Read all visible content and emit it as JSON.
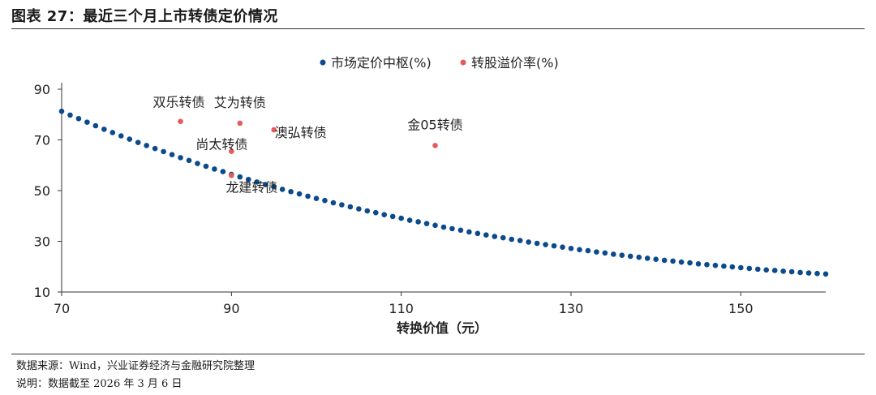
{
  "header": {
    "title": "图表 27：最近三个月上市转债定价情况"
  },
  "footer": {
    "source": "数据来源：Wind，兴业证券经济与金融研究院整理",
    "note": "说明：数据截至 2026 年 3 月 6 日"
  },
  "colors": {
    "series_curve": "#0b4a8b",
    "series_points": "#e65a5a",
    "axis": "#333333"
  },
  "chart_data": {
    "type": "scatter",
    "title": "",
    "xlabel": "转换价值（元）",
    "ylabel": "",
    "xlim": [
      70,
      160
    ],
    "ylim": [
      10,
      90
    ],
    "xticks": [
      70,
      90,
      110,
      130,
      150
    ],
    "yticks": [
      10,
      30,
      50,
      70,
      90
    ],
    "legend_position": "top-right",
    "series": [
      {
        "name": "市场定价中枢(%)",
        "color": "#0b4a8b",
        "points": [
          [
            70,
            81.3
          ],
          [
            71,
            79.8
          ],
          [
            72,
            78.4
          ],
          [
            73,
            77.0
          ],
          [
            74,
            75.6
          ],
          [
            75,
            74.2
          ],
          [
            76,
            72.9
          ],
          [
            77,
            71.6
          ],
          [
            78,
            70.3
          ],
          [
            79,
            69.0
          ],
          [
            80,
            67.8
          ],
          [
            81,
            66.6
          ],
          [
            82,
            65.4
          ],
          [
            83,
            64.2
          ],
          [
            84,
            63.0
          ],
          [
            85,
            61.9
          ],
          [
            86,
            60.7
          ],
          [
            87,
            59.6
          ],
          [
            88,
            58.5
          ],
          [
            89,
            57.5
          ],
          [
            90,
            56.4
          ],
          [
            91,
            55.4
          ],
          [
            92,
            54.4
          ],
          [
            93,
            53.4
          ],
          [
            94,
            52.4
          ],
          [
            95,
            51.5
          ],
          [
            96,
            50.5
          ],
          [
            97,
            49.6
          ],
          [
            98,
            48.7
          ],
          [
            99,
            47.8
          ],
          [
            100,
            46.9
          ],
          [
            101,
            46.1
          ],
          [
            102,
            45.2
          ],
          [
            103,
            44.4
          ],
          [
            104,
            43.6
          ],
          [
            105,
            42.8
          ],
          [
            106,
            42.0
          ],
          [
            107,
            41.3
          ],
          [
            108,
            40.5
          ],
          [
            109,
            39.8
          ],
          [
            110,
            39.1
          ],
          [
            111,
            38.3
          ],
          [
            112,
            37.7
          ],
          [
            113,
            37.0
          ],
          [
            114,
            36.3
          ],
          [
            115,
            35.6
          ],
          [
            116,
            35.0
          ],
          [
            117,
            34.4
          ],
          [
            118,
            33.7
          ],
          [
            119,
            33.1
          ],
          [
            120,
            32.5
          ],
          [
            121,
            31.9
          ],
          [
            122,
            31.4
          ],
          [
            123,
            30.8
          ],
          [
            124,
            30.3
          ],
          [
            125,
            29.7
          ],
          [
            126,
            29.2
          ],
          [
            127,
            28.7
          ],
          [
            128,
            28.2
          ],
          [
            129,
            27.7
          ],
          [
            130,
            27.2
          ],
          [
            131,
            26.7
          ],
          [
            132,
            26.3
          ],
          [
            133,
            25.8
          ],
          [
            134,
            25.4
          ],
          [
            135,
            24.9
          ],
          [
            136,
            24.5
          ],
          [
            137,
            24.1
          ],
          [
            138,
            23.7
          ],
          [
            139,
            23.3
          ],
          [
            140,
            22.9
          ],
          [
            141,
            22.5
          ],
          [
            142,
            22.2
          ],
          [
            143,
            21.8
          ],
          [
            144,
            21.5
          ],
          [
            145,
            21.1
          ],
          [
            146,
            20.8
          ],
          [
            147,
            20.5
          ],
          [
            148,
            20.2
          ],
          [
            149,
            19.9
          ],
          [
            150,
            19.6
          ],
          [
            151,
            19.3
          ],
          [
            152,
            19.0
          ],
          [
            153,
            18.7
          ],
          [
            154,
            18.5
          ],
          [
            155,
            18.2
          ],
          [
            156,
            18.0
          ],
          [
            157,
            17.7
          ],
          [
            158,
            17.5
          ],
          [
            159,
            17.3
          ],
          [
            160,
            17.1
          ]
        ]
      },
      {
        "name": "转股溢价率(%)",
        "color": "#e65a5a",
        "points": [
          {
            "x": 84.0,
            "y": 77.3,
            "label": "双乐转债"
          },
          {
            "x": 91.0,
            "y": 76.6,
            "label": "艾为转债"
          },
          {
            "x": 95.0,
            "y": 74.0,
            "label": "澳弘转债"
          },
          {
            "x": 90.0,
            "y": 65.5,
            "label": "尚太转债"
          },
          {
            "x": 90.0,
            "y": 56.0,
            "label": "龙建转债"
          },
          {
            "x": 114.0,
            "y": 67.8,
            "label": "金05转债"
          }
        ]
      }
    ]
  }
}
